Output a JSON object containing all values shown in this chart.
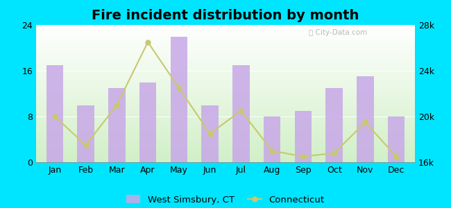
{
  "title": "Fire incident distribution by month",
  "months": [
    "Jan",
    "Feb",
    "Mar",
    "Apr",
    "May",
    "Jun",
    "Jul",
    "Aug",
    "Sep",
    "Oct",
    "Nov",
    "Dec"
  ],
  "bar_values": [
    17,
    10,
    13,
    14,
    22,
    10,
    17,
    8,
    9,
    13,
    15,
    8
  ],
  "line_values": [
    20000,
    17500,
    21000,
    26500,
    22500,
    18500,
    20500,
    17000,
    16500,
    16800,
    19500,
    16500
  ],
  "bar_color": "#c8a8e8",
  "line_color": "#c8c870",
  "bar_alpha": 0.85,
  "ylim_left": [
    0,
    24
  ],
  "ylim_right": [
    16000,
    28000
  ],
  "yticks_left": [
    0,
    8,
    16,
    24
  ],
  "yticks_right": [
    16000,
    20000,
    24000,
    28000
  ],
  "ytick_labels_right": [
    "16k",
    "20k",
    "24k",
    "28k"
  ],
  "background_fig": "#00e5ff",
  "watermark": "City-Data.com",
  "legend_bar_label": "West Simsbury, CT",
  "legend_line_label": "Connecticut",
  "title_fontsize": 14,
  "tick_fontsize": 9
}
